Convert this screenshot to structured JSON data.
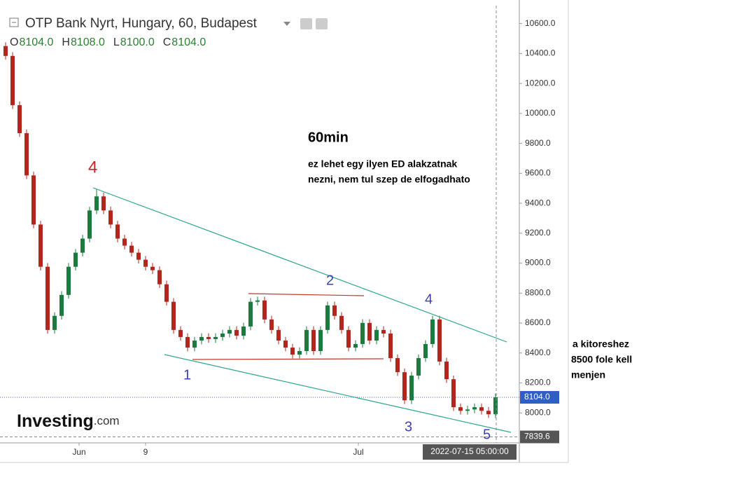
{
  "chart_data": {
    "type": "candlestick",
    "title": "OTP Bank Nyrt, Hungary, 60, Budapest",
    "readout": [
      {
        "key": "O",
        "value": 8104.0,
        "label": "8104.0"
      },
      {
        "key": "H",
        "value": 8108.0,
        "label": "8108.0"
      },
      {
        "key": "L",
        "value": 8100.0,
        "label": "8100.0"
      },
      {
        "key": "C",
        "value": 8104.0,
        "label": "8104.0"
      }
    ],
    "up_color": "#1b7a3e",
    "down_color": "#b3261e",
    "open": [
      10450,
      10384,
      10055,
      9868,
      9586,
      9258,
      8976,
      8554,
      8648,
      8788,
      8976,
      9070,
      9164,
      9352,
      9446,
      9352,
      9258,
      9164,
      9117,
      9070,
      9023,
      8976,
      8953,
      8859,
      8742,
      8554,
      8507,
      8436,
      8483,
      8507,
      8493,
      8507,
      8530,
      8554,
      8516,
      8577,
      8742,
      8751,
      8624,
      8554,
      8483,
      8436,
      8389,
      8413,
      8554,
      8413,
      8554,
      8718,
      8648,
      8554,
      8436,
      8460,
      8601,
      8483,
      8554,
      8530,
      8366,
      8272,
      8084,
      8249,
      8366,
      8460,
      8624,
      8343,
      8225,
      8038,
      8014,
      8023,
      8038,
      8014,
      7991
    ],
    "high": [
      10475,
      10409,
      10080,
      9893,
      9611,
      9283,
      9001,
      8673,
      8813,
      9001,
      9095,
      9189,
      9377,
      9492,
      9471,
      9377,
      9283,
      9189,
      9142,
      9095,
      9048,
      9001,
      8978,
      8884,
      8767,
      8579,
      8532,
      8508,
      8532,
      8532,
      8532,
      8555,
      8579,
      8579,
      8602,
      8767,
      8776,
      8776,
      8649,
      8579,
      8508,
      8461,
      8438,
      8579,
      8579,
      8579,
      8743,
      8743,
      8673,
      8579,
      8485,
      8626,
      8626,
      8579,
      8579,
      8555,
      8391,
      8297,
      8274,
      8391,
      8485,
      8649,
      8649,
      8368,
      8250,
      8063,
      8048,
      8063,
      8063,
      8039,
      8129
    ],
    "low": [
      10359,
      10030,
      9843,
      9561,
      9233,
      8951,
      8529,
      8529,
      8623,
      8763,
      8951,
      9045,
      9139,
      9327,
      9327,
      9233,
      9139,
      9092,
      9045,
      8998,
      8951,
      8928,
      8834,
      8717,
      8529,
      8482,
      8411,
      8411,
      8458,
      8468,
      8468,
      8482,
      8505,
      8491,
      8491,
      8552,
      8717,
      8599,
      8529,
      8458,
      8411,
      8364,
      8364,
      8388,
      8388,
      8388,
      8529,
      8623,
      8529,
      8411,
      8411,
      8435,
      8458,
      8458,
      8505,
      8341,
      8247,
      8059,
      8059,
      8224,
      8341,
      8435,
      8318,
      8200,
      8013,
      7989,
      7989,
      7998,
      7989,
      7966,
      7966
    ],
    "close": [
      10384,
      10055,
      9868,
      9586,
      9258,
      8976,
      8554,
      8648,
      8788,
      8976,
      9070,
      9164,
      9352,
      9446,
      9352,
      9258,
      9164,
      9117,
      9070,
      9023,
      8976,
      8953,
      8859,
      8742,
      8554,
      8507,
      8436,
      8483,
      8507,
      8493,
      8507,
      8530,
      8554,
      8516,
      8577,
      8742,
      8751,
      8624,
      8554,
      8483,
      8436,
      8389,
      8413,
      8554,
      8413,
      8554,
      8718,
      8648,
      8554,
      8436,
      8460,
      8601,
      8483,
      8554,
      8530,
      8366,
      8272,
      8084,
      8249,
      8366,
      8460,
      8624,
      8343,
      8225,
      8038,
      8014,
      8023,
      8038,
      8014,
      7991,
      8104
    ],
    "xlim": [
      -0.8,
      73.4
    ],
    "xticks": [
      {
        "value": 10.5,
        "label": "Jun"
      },
      {
        "value": 20,
        "label": "9"
      },
      {
        "value": 50.4,
        "label": "Jul"
      }
    ],
    "ylim": [
      7800,
      10720
    ],
    "yticks": [
      {
        "value": 8000,
        "label": "8000.0"
      },
      {
        "value": 8200,
        "label": "8200.0"
      },
      {
        "value": 8400,
        "label": "8400.0"
      },
      {
        "value": 8600,
        "label": "8600.0"
      },
      {
        "value": 8800,
        "label": "8800.0"
      },
      {
        "value": 9000,
        "label": "9000.0"
      },
      {
        "value": 9200,
        "label": "9200.0"
      },
      {
        "value": 9400,
        "label": "9400.0"
      },
      {
        "value": 9600,
        "label": "9600.0"
      },
      {
        "value": 9800,
        "label": "9800.0"
      },
      {
        "value": 10000,
        "label": "10000.0"
      },
      {
        "value": 10200,
        "label": "10200.0"
      },
      {
        "value": 10400,
        "label": "10400.0"
      },
      {
        "value": 10600,
        "label": "10600.0"
      }
    ],
    "grid": false,
    "last_price": {
      "value": 8104.0,
      "label": "8104.0"
    },
    "crosshair_price": {
      "value": 7839.6,
      "label": "7839.6"
    },
    "crosshair_time": "2022-07-15 05:00:00",
    "annotations": {
      "heading": "60min",
      "note_line_1": "ez lehet egy ilyen  ED alakzatnak",
      "note_line_2": "nezni, nem tul szep de elfogadhato",
      "side_note": [
        "a kitoreshez",
        "8500 fole kell",
        "menjen"
      ],
      "waves": [
        "4",
        "1",
        "2",
        "3",
        "4",
        "5"
      ]
    },
    "logo": {
      "brand": "Investing",
      "suffix": ".com"
    }
  }
}
